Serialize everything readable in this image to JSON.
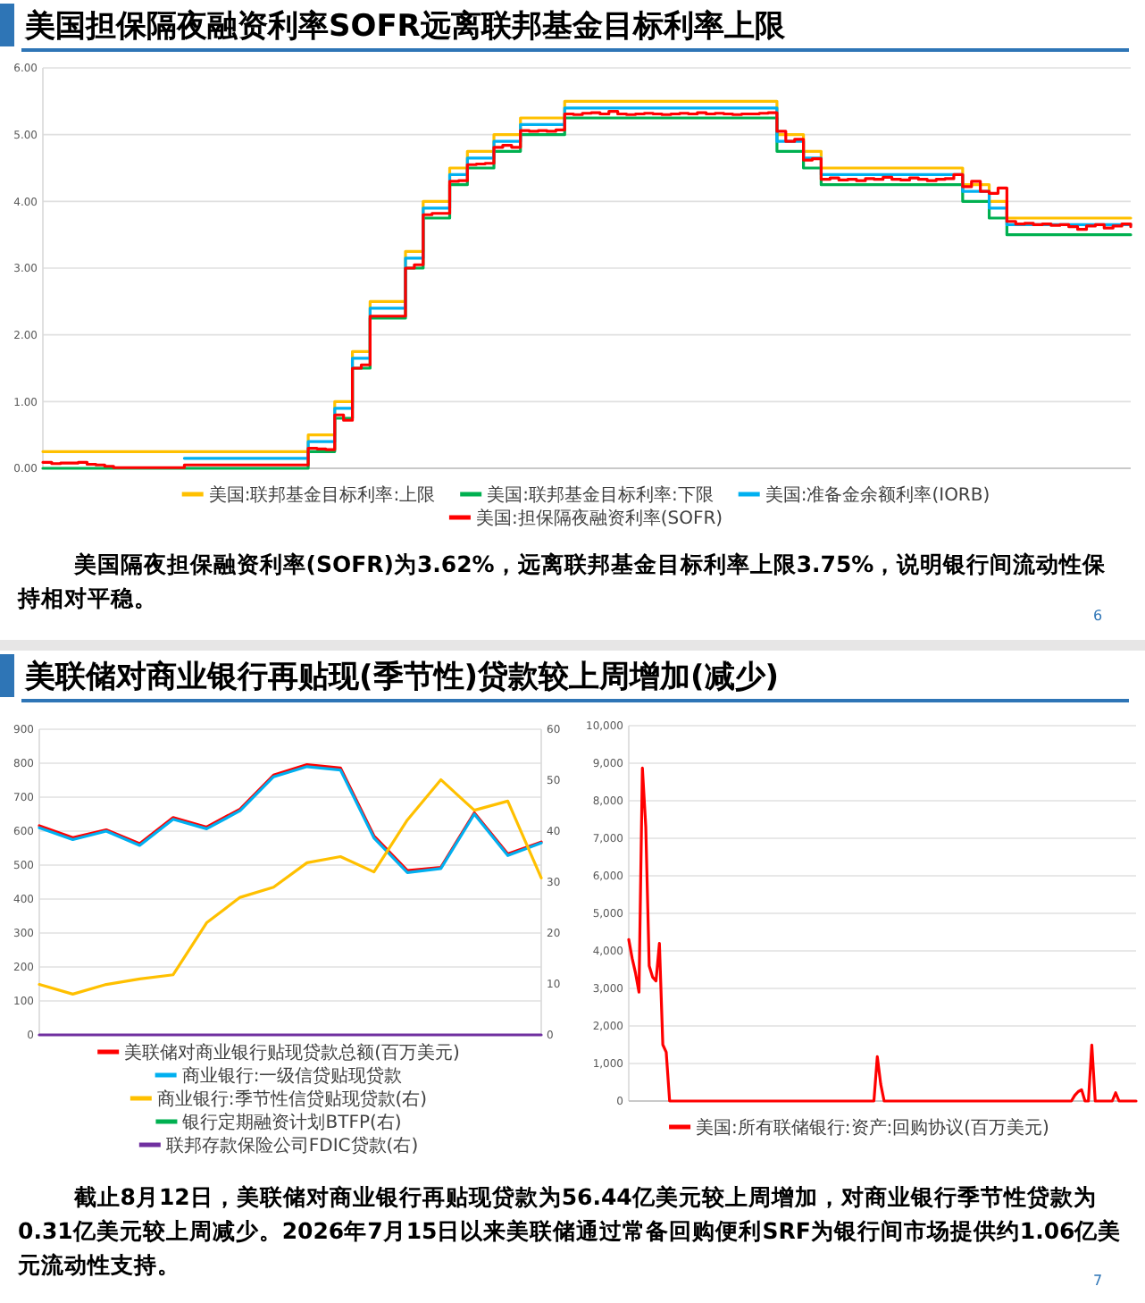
{
  "chart_data": [
    {
      "type": "step",
      "title": "美国担保隔夜融资利率SOFR远离联邦基金目标利率上限",
      "categories": [
        null,
        null,
        null,
        null,
        null,
        null,
        null,
        null,
        null,
        null,
        null,
        null,
        null,
        null,
        null,
        null,
        null,
        null,
        null,
        null,
        null,
        null,
        null,
        null,
        null,
        null,
        null,
        null,
        null,
        null,
        null,
        null,
        null,
        null,
        null,
        null,
        null,
        null,
        null,
        null,
        null,
        null,
        null,
        null,
        null,
        null,
        null,
        null,
        null,
        null,
        null,
        null,
        null,
        null,
        null,
        null,
        null,
        null,
        null,
        null,
        null,
        null,
        null,
        null,
        null,
        null,
        null,
        null,
        null,
        null,
        null,
        null,
        null,
        null,
        null,
        null,
        null,
        null,
        null,
        null,
        null,
        null,
        null,
        null,
        null,
        null,
        null,
        null,
        null,
        null,
        null,
        null,
        null,
        null,
        null,
        null,
        null,
        null,
        null,
        null,
        null,
        null,
        null,
        null,
        null,
        null,
        null,
        null,
        null,
        null,
        null,
        null,
        null,
        null,
        null,
        null,
        null,
        null,
        null,
        null,
        null,
        null,
        null,
        null
      ],
      "ylim": [
        0,
        6
      ],
      "yticks": [
        {
          "value": 0,
          "label": "0.00"
        },
        {
          "value": 1,
          "label": "1.00"
        },
        {
          "value": 2,
          "label": "2.00"
        },
        {
          "value": 3,
          "label": "3.00"
        },
        {
          "value": 4,
          "label": "4.00"
        },
        {
          "value": 5,
          "label": "5.00"
        },
        {
          "value": 6,
          "label": "6.00"
        }
      ],
      "grid": "y",
      "legend": "bottom",
      "series": [
        {
          "name": "美国:联邦基金目标利率:上限",
          "color": "#ffc000",
          "values": [
            0.25,
            0.25,
            0.25,
            0.25,
            0.25,
            0.25,
            0.25,
            0.25,
            0.25,
            0.25,
            0.25,
            0.25,
            0.25,
            0.25,
            0.25,
            0.25,
            0.25,
            0.25,
            0.25,
            0.25,
            0.25,
            0.25,
            0.25,
            0.25,
            0.25,
            0.25,
            0.25,
            0.25,
            0.25,
            0.25,
            0.5,
            0.5,
            0.5,
            1,
            1,
            1.75,
            1.75,
            2.5,
            2.5,
            2.5,
            2.5,
            3.25,
            3.25,
            4,
            4,
            4,
            4.5,
            4.5,
            4.75,
            4.75,
            4.75,
            5,
            5,
            5,
            5.25,
            5.25,
            5.25,
            5.25,
            5.25,
            5.5,
            5.5,
            5.5,
            5.5,
            5.5,
            5.5,
            5.5,
            5.5,
            5.5,
            5.5,
            5.5,
            5.5,
            5.5,
            5.5,
            5.5,
            5.5,
            5.5,
            5.5,
            5.5,
            5.5,
            5.5,
            5.5,
            5.5,
            5.5,
            5,
            5,
            5,
            4.75,
            4.75,
            4.5,
            4.5,
            4.5,
            4.5,
            4.5,
            4.5,
            4.5,
            4.5,
            4.5,
            4.5,
            4.5,
            4.5,
            4.5,
            4.5,
            4.5,
            4.5,
            4.25,
            4.25,
            4.25,
            4,
            4,
            3.75,
            3.75,
            3.75,
            3.75,
            3.75,
            3.75,
            3.75,
            3.75,
            3.75,
            3.75,
            3.75,
            3.75,
            3.75,
            3.75,
            3.75
          ]
        },
        {
          "name": "美国:联邦基金目标利率:下限",
          "color": "#00b050",
          "values": [
            0,
            0,
            0,
            0,
            0,
            0,
            0,
            0,
            0,
            0,
            0,
            0,
            0,
            0,
            0,
            0,
            0,
            0,
            0,
            0,
            0,
            0,
            0,
            0,
            0,
            0,
            0,
            0,
            0,
            0,
            0.25,
            0.25,
            0.25,
            0.75,
            0.75,
            1.5,
            1.5,
            2.25,
            2.25,
            2.25,
            2.25,
            3,
            3,
            3.75,
            3.75,
            3.75,
            4.25,
            4.25,
            4.5,
            4.5,
            4.5,
            4.75,
            4.75,
            4.75,
            5,
            5,
            5,
            5,
            5,
            5.25,
            5.25,
            5.25,
            5.25,
            5.25,
            5.25,
            5.25,
            5.25,
            5.25,
            5.25,
            5.25,
            5.25,
            5.25,
            5.25,
            5.25,
            5.25,
            5.25,
            5.25,
            5.25,
            5.25,
            5.25,
            5.25,
            5.25,
            5.25,
            4.75,
            4.75,
            4.75,
            4.5,
            4.5,
            4.25,
            4.25,
            4.25,
            4.25,
            4.25,
            4.25,
            4.25,
            4.25,
            4.25,
            4.25,
            4.25,
            4.25,
            4.25,
            4.25,
            4.25,
            4.25,
            4,
            4,
            4,
            3.75,
            3.75,
            3.5,
            3.5,
            3.5,
            3.5,
            3.5,
            3.5,
            3.5,
            3.5,
            3.5,
            3.5,
            3.5,
            3.5,
            3.5,
            3.5,
            3.5
          ]
        },
        {
          "name": "美国:准备金余额利率(IORB)",
          "color": "#00b0f0",
          "values": [
            null,
            null,
            null,
            null,
            null,
            null,
            null,
            null,
            null,
            null,
            null,
            null,
            null,
            null,
            null,
            null,
            0.15,
            0.15,
            0.15,
            0.15,
            0.15,
            0.15,
            0.15,
            0.15,
            0.15,
            0.15,
            0.15,
            0.15,
            0.15,
            0.15,
            0.4,
            0.4,
            0.4,
            0.9,
            0.9,
            1.65,
            1.65,
            2.4,
            2.4,
            2.4,
            2.4,
            3.15,
            3.15,
            3.9,
            3.9,
            3.9,
            4.4,
            4.4,
            4.65,
            4.65,
            4.65,
            4.9,
            4.9,
            4.9,
            5.15,
            5.15,
            5.15,
            5.15,
            5.15,
            5.4,
            5.4,
            5.4,
            5.4,
            5.4,
            5.4,
            5.4,
            5.4,
            5.4,
            5.4,
            5.4,
            5.4,
            5.4,
            5.4,
            5.4,
            5.4,
            5.4,
            5.4,
            5.4,
            5.4,
            5.4,
            5.4,
            5.4,
            5.4,
            4.9,
            4.9,
            4.9,
            4.65,
            4.65,
            4.4,
            4.4,
            4.4,
            4.4,
            4.4,
            4.4,
            4.4,
            4.4,
            4.4,
            4.4,
            4.4,
            4.4,
            4.4,
            4.4,
            4.4,
            4.4,
            4.15,
            4.15,
            4.15,
            3.9,
            3.9,
            3.65,
            3.65,
            3.65,
            3.65,
            3.65,
            3.65,
            3.65,
            3.65,
            3.65,
            3.65,
            3.65,
            3.65,
            3.65,
            3.65,
            3.65
          ]
        },
        {
          "name": "美国:担保隔夜融资利率(SOFR)",
          "color": "#ff0000",
          "values": [
            0.09,
            0.07,
            0.08,
            0.08,
            0.09,
            0.06,
            0.05,
            0.03,
            0.01,
            0.01,
            0.01,
            0.01,
            0.01,
            0.01,
            0.01,
            0.01,
            0.05,
            0.05,
            0.05,
            0.05,
            0.05,
            0.05,
            0.05,
            0.05,
            0.05,
            0.05,
            0.05,
            0.05,
            0.05,
            0.05,
            0.3,
            0.29,
            0.28,
            0.8,
            0.72,
            1.5,
            1.55,
            2.28,
            2.28,
            2.28,
            2.28,
            3,
            3.05,
            3.8,
            3.82,
            3.82,
            4.3,
            4.31,
            4.55,
            4.56,
            4.57,
            4.81,
            4.84,
            4.81,
            5.06,
            5.05,
            5.06,
            5.05,
            5.07,
            5.31,
            5.3,
            5.32,
            5.33,
            5.31,
            5.35,
            5.31,
            5.3,
            5.31,
            5.32,
            5.31,
            5.3,
            5.31,
            5.32,
            5.31,
            5.33,
            5.31,
            5.32,
            5.31,
            5.3,
            5.31,
            5.31,
            5.32,
            5.33,
            5.05,
            4.9,
            4.93,
            4.62,
            4.64,
            4.33,
            4.35,
            4.32,
            4.33,
            4.31,
            4.34,
            4.33,
            4.36,
            4.33,
            4.32,
            4.35,
            4.33,
            4.31,
            4.33,
            4.34,
            4.4,
            4.22,
            4.3,
            4.15,
            4.12,
            4.2,
            3.7,
            3.66,
            3.67,
            3.65,
            3.66,
            3.64,
            3.65,
            3.62,
            3.58,
            3.63,
            3.65,
            3.6,
            3.63,
            3.66,
            3.62
          ]
        }
      ],
      "annotations": [
        "美国隔夜担保融资利率(SOFR)为3.62%，远离联邦基金目标利率上限3.75%，说明银行间流动性保持相对平稳。",
        "6"
      ]
    },
    {
      "type": "line",
      "title": "美联储对商业银行再贴现(季节性)贷款较上周增加(减少)",
      "categories": [
        null,
        null,
        null,
        null,
        null,
        null,
        null,
        null,
        null,
        null,
        null,
        null,
        null,
        null,
        null,
        null
      ],
      "ylim": [
        0,
        900
      ],
      "yticks": [
        0,
        100,
        200,
        300,
        400,
        500,
        600,
        700,
        800,
        900
      ],
      "y2lim": [
        0,
        60
      ],
      "y2ticks": [
        0,
        10,
        20,
        30,
        40,
        50,
        60
      ],
      "grid": "y",
      "legend": "bottom",
      "series": [
        {
          "name": "美联储对商业银行贴现贷款总额(百万美元)",
          "color": "#ff0000",
          "values": [
            616,
            581,
            604,
            563,
            640,
            612,
            665,
            765,
            796,
            786,
            586,
            484,
            493,
            654,
            533,
            568
          ]
        },
        {
          "name": "商业银行:一级信贷贴现贷款",
          "color": "#00b0f0",
          "values": [
            610,
            575,
            600,
            558,
            635,
            607,
            660,
            760,
            790,
            780,
            580,
            478,
            490,
            650,
            528,
            565
          ]
        },
        {
          "name": "商业银行:季节性信贷贴现贷款(右)",
          "color": "#ffc000",
          "axis": "y2",
          "values": [
            9.9,
            8,
            9.9,
            11,
            11.8,
            22,
            27,
            29,
            33.8,
            35,
            32,
            42.2,
            50.1,
            44.1,
            45.9,
            30.8
          ]
        },
        {
          "name": "银行定期融资计划BTFP(右)",
          "color": "#00b050",
          "axis": "y2",
          "values": [
            null,
            null,
            null,
            null,
            null,
            null,
            null,
            null,
            null,
            null,
            null,
            null,
            null,
            null,
            null,
            null
          ]
        },
        {
          "name": "联邦存款保险公司FDIC贷款(右)",
          "color": "#7030a0",
          "axis": "y2",
          "values": [
            0,
            0,
            0,
            0,
            0,
            0,
            0,
            0,
            0,
            0,
            0,
            0,
            0,
            0,
            0,
            0
          ]
        }
      ],
      "annotations": [
        "截止8月12日，美联储对商业银行再贴现贷款为56.44亿美元较上周增加，对商业银行季节性贷款为0.31亿美元较上周减少。2026年7月15日以来美联储通过常备回购便利SRF为银行间市场提供约1.06亿美元流动性支持。",
        "7"
      ]
    },
    {
      "type": "line",
      "categories": [
        null,
        null,
        null,
        null,
        null,
        null,
        null,
        null,
        null,
        null,
        null,
        null,
        null,
        null,
        null,
        null,
        null,
        null,
        null,
        null,
        null,
        null,
        null,
        null,
        null,
        null,
        null,
        null,
        null,
        null,
        null,
        null,
        null,
        null,
        null,
        null,
        null,
        null,
        null,
        null,
        null,
        null,
        null,
        null,
        null,
        null,
        null,
        null,
        null,
        null,
        null,
        null,
        null,
        null,
        null,
        null,
        null,
        null,
        null,
        null,
        null,
        null,
        null,
        null,
        null,
        null,
        null,
        null,
        null,
        null,
        null,
        null,
        null,
        null,
        null,
        null,
        null,
        null,
        null,
        null,
        null,
        null,
        null,
        null,
        null,
        null,
        null,
        null,
        null,
        null,
        null,
        null,
        null,
        null,
        null,
        null,
        null,
        null,
        null,
        null,
        null,
        null,
        null,
        null,
        null,
        null,
        null,
        null,
        null,
        null,
        null,
        null,
        null,
        null,
        null,
        null,
        null,
        null,
        null,
        null,
        null,
        null,
        null,
        null,
        null,
        null,
        null,
        null,
        null,
        null,
        null,
        null,
        null,
        null,
        null,
        null,
        null,
        null,
        null,
        null,
        null,
        null,
        null,
        null,
        null,
        null,
        null,
        null,
        null,
        null
      ],
      "ylim": [
        0,
        10000
      ],
      "yticks": [
        0,
        {
          "value": 1000,
          "label": "1,000"
        },
        {
          "value": 2000,
          "label": "2,000"
        },
        {
          "value": 3000,
          "label": "3,000"
        },
        {
          "value": 4000,
          "label": "4,000"
        },
        {
          "value": 5000,
          "label": "5,000"
        },
        {
          "value": 6000,
          "label": "6,000"
        },
        {
          "value": 7000,
          "label": "7,000"
        },
        {
          "value": 8000,
          "label": "8,000"
        },
        {
          "value": 9000,
          "label": "9,000"
        },
        {
          "value": 10000,
          "label": "10,000"
        }
      ],
      "grid": "y",
      "legend": "bottom",
      "series": [
        {
          "name": "美国:所有联储银行:资产:回购协议(百万美元)",
          "color": "#ff0000",
          "values": [
            4300,
            3800,
            3400,
            2900,
            8870,
            7300,
            3600,
            3300,
            3200,
            4200,
            1500,
            1300,
            0,
            0,
            0,
            0,
            0,
            0,
            0,
            0,
            0,
            0,
            0,
            0,
            0,
            0,
            0,
            0,
            0,
            0,
            0,
            0,
            0,
            0,
            0,
            0,
            0,
            0,
            0,
            0,
            0,
            0,
            0,
            0,
            0,
            0,
            0,
            0,
            0,
            0,
            0,
            0,
            0,
            0,
            0,
            0,
            0,
            0,
            0,
            0,
            0,
            0,
            0,
            0,
            0,
            0,
            0,
            0,
            0,
            0,
            0,
            0,
            0,
            1180,
            450,
            0,
            0,
            0,
            0,
            0,
            0,
            0,
            0,
            0,
            0,
            0,
            0,
            0,
            0,
            0,
            0,
            0,
            0,
            0,
            0,
            0,
            0,
            0,
            0,
            0,
            0,
            0,
            0,
            0,
            0,
            0,
            0,
            0,
            0,
            0,
            0,
            0,
            0,
            0,
            0,
            0,
            0,
            0,
            0,
            0,
            0,
            0,
            0,
            0,
            0,
            0,
            0,
            0,
            0,
            0,
            0,
            150,
            250,
            300,
            0,
            0,
            1490,
            0,
            0,
            0,
            0,
            0,
            0,
            220,
            0,
            0,
            0,
            0,
            0,
            0
          ]
        }
      ]
    }
  ]
}
